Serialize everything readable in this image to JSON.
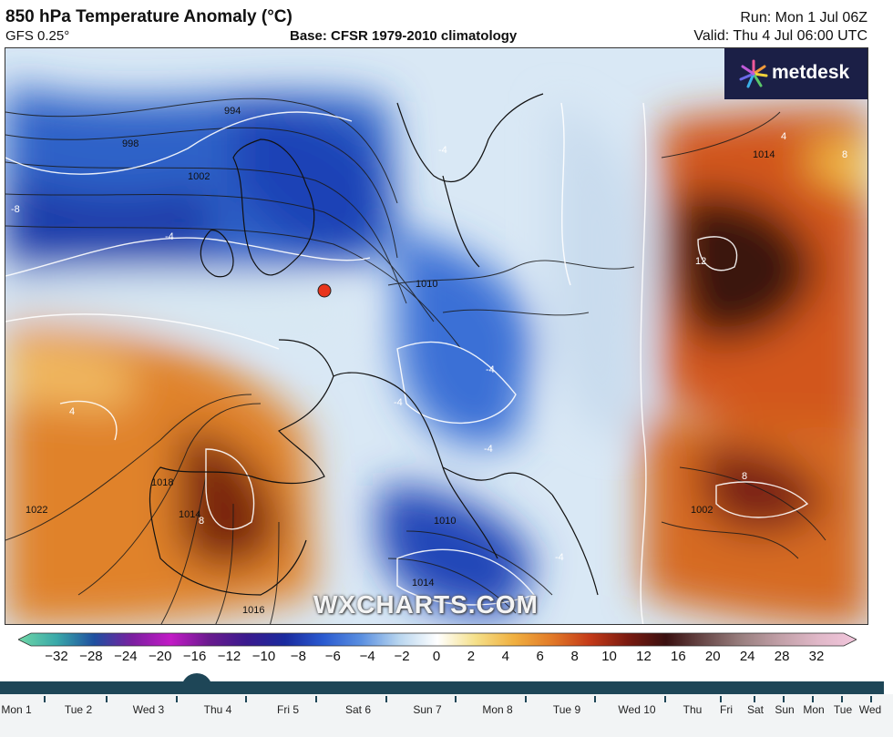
{
  "header": {
    "title": "850 hPa Temperature Anomaly (°C)",
    "model": "GFS 0.25°",
    "base": "Base: CFSR 1979-2010 climatology",
    "run": "Run: Mon 1 Jul 06Z",
    "valid": "Valid: Thu 4 Jul 06:00 UTC"
  },
  "logo": {
    "text": "metdesk",
    "icon": "metdesk-star-icon"
  },
  "watermark": "WXCHARTS.COM",
  "map": {
    "isobar_labels": [
      "994",
      "998",
      "1002",
      "1010",
      "1014",
      "1018",
      "1022",
      "1014",
      "1016",
      "1002",
      "1010",
      "1014"
    ],
    "anomaly_labels": [
      "-8",
      "-4",
      "-4",
      "4",
      "8",
      "8",
      "12",
      "8",
      "-4",
      "-4",
      "-4",
      "-4",
      "4"
    ],
    "marker": {
      "color": "#e8341c",
      "label": ""
    }
  },
  "colorbar": {
    "ticks": [
      "−32",
      "−28",
      "−24",
      "−20",
      "−16",
      "−12",
      "−10",
      "−8",
      "−6",
      "−4",
      "−2",
      "0",
      "2",
      "4",
      "6",
      "8",
      "10",
      "12",
      "16",
      "20",
      "24",
      "28",
      "32"
    ],
    "stops": [
      "#6fd7a6",
      "#3aa9a9",
      "#1f4fa0",
      "#7b1fa0",
      "#c21ac6",
      "#6a1a8e",
      "#3a1a8e",
      "#1a2a9e",
      "#2a5ad0",
      "#5a8fe0",
      "#b9d6ef",
      "#ffffff",
      "#f5e08a",
      "#f0b040",
      "#e27a28",
      "#c43a18",
      "#7a1a10",
      "#3a1010",
      "#6a4a4a",
      "#9a8080",
      "#c2a0a8",
      "#e0b8c8",
      "#f2c6dc"
    ]
  },
  "timeline": {
    "days": [
      "Mon 1",
      "Tue 2",
      "Wed 3",
      "Thu 4",
      "Fri 5",
      "Sat 6",
      "Sun 7",
      "Mon 8",
      "Tue 9",
      "Wed 10",
      "Thu",
      "Fri",
      "Sat",
      "Sun",
      "Mon",
      "Tue",
      "Wed"
    ],
    "selected": "Thu 4"
  }
}
